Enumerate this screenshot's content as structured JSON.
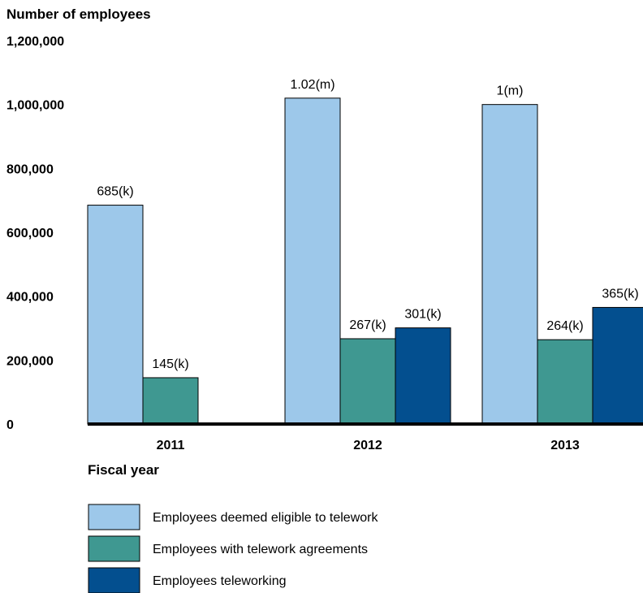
{
  "chart_data": {
    "type": "bar",
    "ylabel": "Number of employees",
    "xlabel": "Fiscal year",
    "categories": [
      "2011",
      "2012",
      "2013"
    ],
    "ylim": [
      0,
      1200000
    ],
    "yticks": [
      "0",
      "200,000",
      "400,000",
      "600,000",
      "800,000",
      "1,000,000",
      "1,200,000"
    ],
    "grid": false,
    "legend_position": "bottom",
    "series": [
      {
        "name": "Employees deemed eligible to telework",
        "color": "#9dc8ea",
        "values": [
          685000,
          1020000,
          1000000
        ],
        "labels": [
          "685(k)",
          "1.02(m)",
          "1(m)"
        ]
      },
      {
        "name": "Employees with telework agreements",
        "color": "#3f9891",
        "values": [
          145000,
          267000,
          264000
        ],
        "labels": [
          "145(k)",
          "267(k)",
          "264(k)"
        ]
      },
      {
        "name": "Employees teleworking",
        "color": "#034f8f",
        "values": [
          null,
          301000,
          365000
        ],
        "labels": [
          null,
          "301(k)",
          "365(k)"
        ]
      }
    ]
  }
}
